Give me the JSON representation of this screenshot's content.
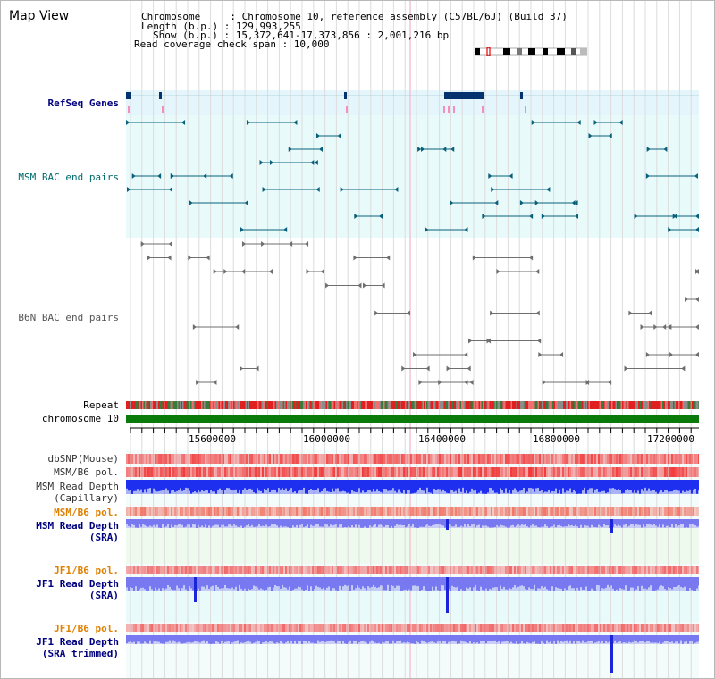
{
  "view": {
    "title": "Map View",
    "info_lines": [
      "Chromosome     : Chromosome 10, reference assembly (C57BL/6J) (Build 37)",
      "Length (b.p.) : 129,993,255",
      "Show (b.p.) : 15,372,641-17,373,856 : 2,001,216 bp",
      "Read coverage check span : 10,000"
    ]
  },
  "tracks": {
    "refseq": "RefSeq Genes",
    "msm_bac": "MSM BAC end pairs",
    "b6n_bac": "B6N BAC end pairs",
    "repeat": "Repeat",
    "chromosome": "chromosome 10",
    "dbsnp": "dbSNP(Mouse)",
    "msm_b6_pol": "MSM/B6 pol.",
    "msm_depth_cap_1": "MSM Read Depth",
    "msm_depth_cap_2": "(Capillary)",
    "msm_b6_pol_2": "MSM/B6 pol.",
    "msm_depth_sra_1": "MSM Read Depth",
    "msm_depth_sra_2": "(SRA)",
    "jf1_b6_pol": "JF1/B6 pol.",
    "jf1_depth_sra_1": "JF1 Read Depth",
    "jf1_depth_sra_2": "(SRA)",
    "jf1_b6_pol_2": "JF1/B6 pol.",
    "jf1_depth_trim_1": "JF1 Read Depth",
    "jf1_depth_trim_2": "(SRA trimmed)"
  },
  "axis": {
    "ticks": [
      "15600000",
      "16000000",
      "16400000",
      "16800000",
      "17200000"
    ]
  },
  "colors": {
    "refseq_bg": "#e4f6fb",
    "msm_bg": "#e8fafa",
    "gene_color": "#08607a",
    "bac_grey": "#6e6e6e",
    "chrom_green": "#0a7a0a",
    "depth_blue": "#1e2ff0",
    "sra_blue": "#7878f0"
  }
}
